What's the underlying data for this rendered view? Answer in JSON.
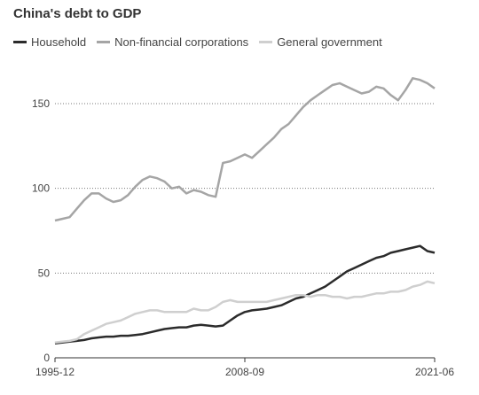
{
  "chart_data": {
    "type": "line",
    "title": "China's debt to GDP",
    "xlabel": "",
    "ylabel": "",
    "x": [
      "1995-12",
      "1996-06",
      "1996-12",
      "1997-06",
      "1997-12",
      "1998-06",
      "1998-12",
      "1999-06",
      "1999-12",
      "2000-06",
      "2000-12",
      "2001-06",
      "2001-12",
      "2002-06",
      "2002-12",
      "2003-06",
      "2003-12",
      "2004-06",
      "2004-12",
      "2005-06",
      "2005-12",
      "2006-06",
      "2006-12",
      "2007-06",
      "2007-12",
      "2008-06",
      "2008-09",
      "2008-12",
      "2009-06",
      "2009-12",
      "2010-06",
      "2010-12",
      "2011-06",
      "2011-12",
      "2012-06",
      "2012-12",
      "2013-06",
      "2013-12",
      "2014-06",
      "2014-12",
      "2015-06",
      "2015-12",
      "2016-06",
      "2016-12",
      "2017-06",
      "2017-12",
      "2018-06",
      "2018-12",
      "2019-06",
      "2019-12",
      "2020-06",
      "2020-12",
      "2021-06"
    ],
    "x_ticks": [
      "1995-12",
      "2008-09",
      "2021-06"
    ],
    "y_ticks": [
      0,
      50,
      100,
      150
    ],
    "ylim": [
      0,
      170
    ],
    "grid": true,
    "legend_position": "top-left",
    "series": [
      {
        "name": "Household",
        "color": "#2b2b2b",
        "values": [
          8.5,
          9,
          9.5,
          10,
          10.5,
          11.5,
          12,
          12.5,
          12.5,
          13,
          13,
          13.5,
          14,
          15,
          16,
          17,
          17.5,
          18,
          18,
          19,
          19.5,
          19,
          18.5,
          19,
          22,
          25,
          27,
          28,
          28.5,
          29,
          30,
          31,
          33,
          35,
          36,
          38,
          40,
          42,
          45,
          48,
          51,
          53,
          55,
          57,
          59,
          60,
          62,
          63,
          64,
          65,
          66,
          63,
          62
        ]
      },
      {
        "name": "Non-financial corporations",
        "color": "#a5a5a5",
        "values": [
          81,
          82,
          83,
          88,
          93,
          97,
          97,
          94,
          92,
          93,
          96,
          101,
          105,
          107,
          106,
          104,
          100,
          101,
          97,
          99,
          98,
          96,
          95,
          115,
          116,
          118,
          120,
          118,
          122,
          126,
          130,
          135,
          138,
          143,
          148,
          152,
          155,
          158,
          161,
          162,
          160,
          158,
          156,
          157,
          160,
          159,
          155,
          152,
          158,
          165,
          164,
          162,
          159
        ]
      },
      {
        "name": "General government",
        "color": "#cfcfcf",
        "values": [
          9,
          9.5,
          10,
          11,
          14,
          16,
          18,
          20,
          21,
          22,
          24,
          26,
          27,
          28,
          28,
          27,
          27,
          27,
          27,
          29,
          28,
          28,
          30,
          33,
          34,
          33,
          33,
          33,
          33,
          33,
          34,
          35,
          36,
          37,
          37,
          36,
          37,
          37,
          36,
          36,
          35,
          36,
          36,
          37,
          38,
          38,
          39,
          39,
          40,
          42,
          43,
          45,
          44
        ]
      }
    ]
  }
}
